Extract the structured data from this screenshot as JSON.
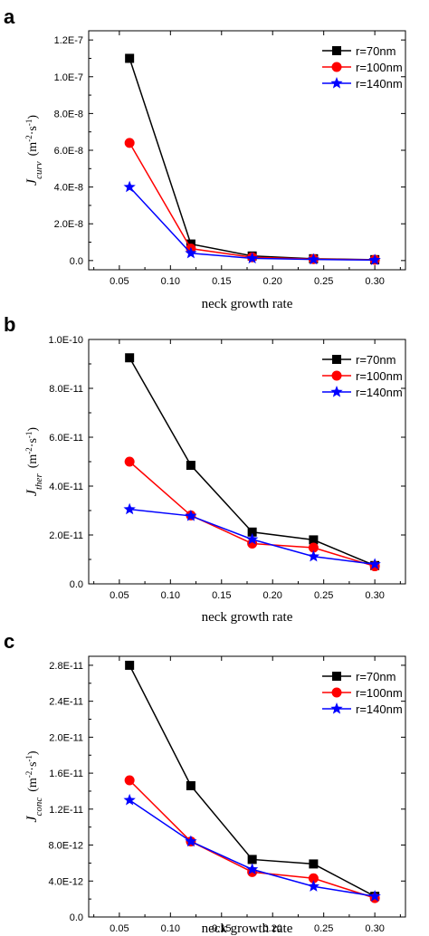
{
  "chart_data": [
    {
      "type": "line",
      "panel_label": "a",
      "x": [
        0.06,
        0.12,
        0.18,
        0.24,
        0.3
      ],
      "xlabel": "neck growth rate",
      "xlim": [
        0.02,
        0.33
      ],
      "xticks": [
        "0.05",
        "0.10",
        "0.15",
        "0.20",
        "0.25",
        "0.30"
      ],
      "ylabel": {
        "symbol": "J",
        "subscript": "curv",
        "unit_base": "(m",
        "unit_exp1": "-2",
        "unit_mid": "·s",
        "unit_exp2": "-1",
        "unit_end": ")"
      },
      "ylim": [
        -5e-09,
        1.25e-07
      ],
      "yticks": [
        "0.0",
        "2.0E-8",
        "4.0E-8",
        "6.0E-8",
        "8.0E-8",
        "1.0E-7",
        "1.2E-7"
      ],
      "ytick_values": [
        0,
        2e-08,
        4e-08,
        6e-08,
        8e-08,
        1e-07,
        1.2e-07
      ],
      "legend_position": "top-right",
      "series": [
        {
          "name": "r=70nm",
          "color": "#000000",
          "marker": "square",
          "values": [
            1.1e-07,
            9e-09,
            2.5e-09,
            1e-09,
            5e-10
          ]
        },
        {
          "name": "r=100nm",
          "color": "#ff0000",
          "marker": "circle",
          "values": [
            6.4e-08,
            6.5e-09,
            1.8e-09,
            8e-10,
            4e-10
          ]
        },
        {
          "name": "r=140nm",
          "color": "#0000ff",
          "marker": "star",
          "values": [
            4e-08,
            4e-09,
            1.2e-09,
            6e-10,
            3e-10
          ]
        }
      ]
    },
    {
      "type": "line",
      "panel_label": "b",
      "x": [
        0.06,
        0.12,
        0.18,
        0.24,
        0.3
      ],
      "xlabel": "neck growth rate",
      "xlim": [
        0.02,
        0.33
      ],
      "xticks": [
        "0.05",
        "0.10",
        "0.15",
        "0.20",
        "0.25",
        "0.30"
      ],
      "ylabel": {
        "symbol": "J",
        "subscript": "ther",
        "unit_base": "(m",
        "unit_exp1": "-2",
        "unit_mid": "·s",
        "unit_exp2": "-1",
        "unit_end": ")"
      },
      "ylim": [
        0,
        1e-10
      ],
      "yticks": [
        "0.0",
        "2.0E-11",
        "4.0E-11",
        "6.0E-11",
        "8.0E-11",
        "1.0E-10"
      ],
      "ytick_values": [
        0,
        2e-11,
        4e-11,
        6e-11,
        8e-11,
        1e-10
      ],
      "legend_position": "top-right",
      "series": [
        {
          "name": "r=70nm",
          "color": "#000000",
          "marker": "square",
          "values": [
            9.25e-11,
            4.85e-11,
            2.12e-11,
            1.8e-11,
            7.5e-12
          ]
        },
        {
          "name": "r=100nm",
          "color": "#ff0000",
          "marker": "circle",
          "values": [
            5e-11,
            2.8e-11,
            1.65e-11,
            1.48e-11,
            7.2e-12
          ]
        },
        {
          "name": "r=140nm",
          "color": "#0000ff",
          "marker": "star",
          "values": [
            3.05e-11,
            2.78e-11,
            1.82e-11,
            1.12e-11,
            8e-12
          ]
        }
      ]
    },
    {
      "type": "line",
      "panel_label": "c",
      "x": [
        0.06,
        0.12,
        0.18,
        0.24,
        0.3
      ],
      "xlabel": "neck growth rate",
      "xlim": [
        0.02,
        0.33
      ],
      "xticks": [
        "0.05",
        "0.10",
        "0.15",
        "0.20",
        "0.25",
        "0.30"
      ],
      "ylabel": {
        "symbol": "J",
        "subscript": "conc",
        "unit_base": "(m",
        "unit_exp1": "-2",
        "unit_mid": "·s",
        "unit_exp2": "-1",
        "unit_end": ")"
      },
      "ylim": [
        0,
        2.9e-11
      ],
      "yticks": [
        "0.0",
        "4.0E-12",
        "8.0E-12",
        "1.2E-11",
        "1.6E-11",
        "2.0E-11",
        "2.4E-11",
        "2.8E-11"
      ],
      "ytick_values": [
        0,
        4e-12,
        8e-12,
        1.2e-11,
        1.6e-11,
        2e-11,
        2.4e-11,
        2.8e-11
      ],
      "legend_position": "top-right",
      "series": [
        {
          "name": "r=70nm",
          "color": "#000000",
          "marker": "square",
          "values": [
            2.8e-11,
            1.46e-11,
            6.4e-12,
            5.9e-12,
            2.3e-12
          ]
        },
        {
          "name": "r=100nm",
          "color": "#ff0000",
          "marker": "circle",
          "values": [
            1.52e-11,
            8.4e-12,
            5e-12,
            4.3e-12,
            2.1e-12
          ]
        },
        {
          "name": "r=140nm",
          "color": "#0000ff",
          "marker": "star",
          "values": [
            1.3e-11,
            8.4e-12,
            5.3e-12,
            3.4e-12,
            2.3e-12
          ]
        }
      ]
    }
  ]
}
